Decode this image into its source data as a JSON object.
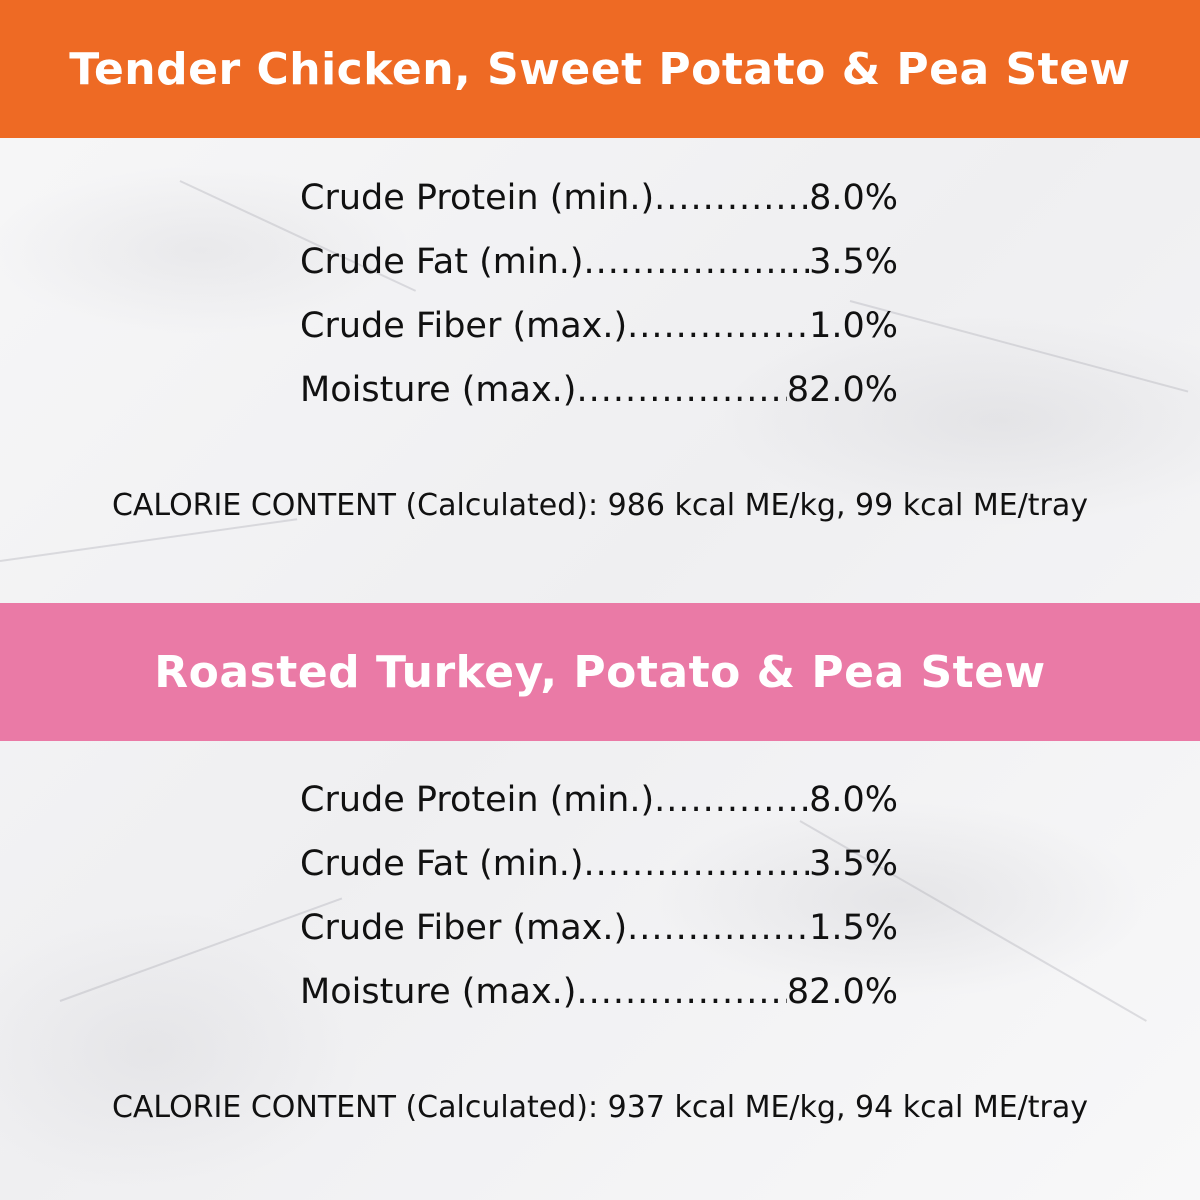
{
  "colors": {
    "orange_band": "#EE6A24",
    "pink_band": "#EA7AA6"
  },
  "sections": [
    {
      "title": "Tender Chicken, Sweet Potato & Pea Stew",
      "nutrients": [
        {
          "label": "Crude Protein (min.)",
          "value": "8.0%"
        },
        {
          "label": "Crude Fat (min.)",
          "value": "3.5%"
        },
        {
          "label": "Crude Fiber (max.)",
          "value": "1.0%"
        },
        {
          "label": "Moisture (max.)",
          "value": "82.0%"
        }
      ],
      "calorie": "CALORIE CONTENT (Calculated): 986 kcal ME/kg, 99 kcal ME/tray"
    },
    {
      "title": "Roasted Turkey, Potato & Pea Stew",
      "nutrients": [
        {
          "label": "Crude Protein (min.)",
          "value": "8.0%"
        },
        {
          "label": "Crude Fat (min.)",
          "value": "3.5%"
        },
        {
          "label": "Crude Fiber (max.)",
          "value": "1.5%"
        },
        {
          "label": "Moisture (max.)",
          "value": "82.0%"
        }
      ],
      "calorie": "CALORIE CONTENT (Calculated): 937 kcal ME/kg, 94 kcal ME/tray"
    }
  ]
}
